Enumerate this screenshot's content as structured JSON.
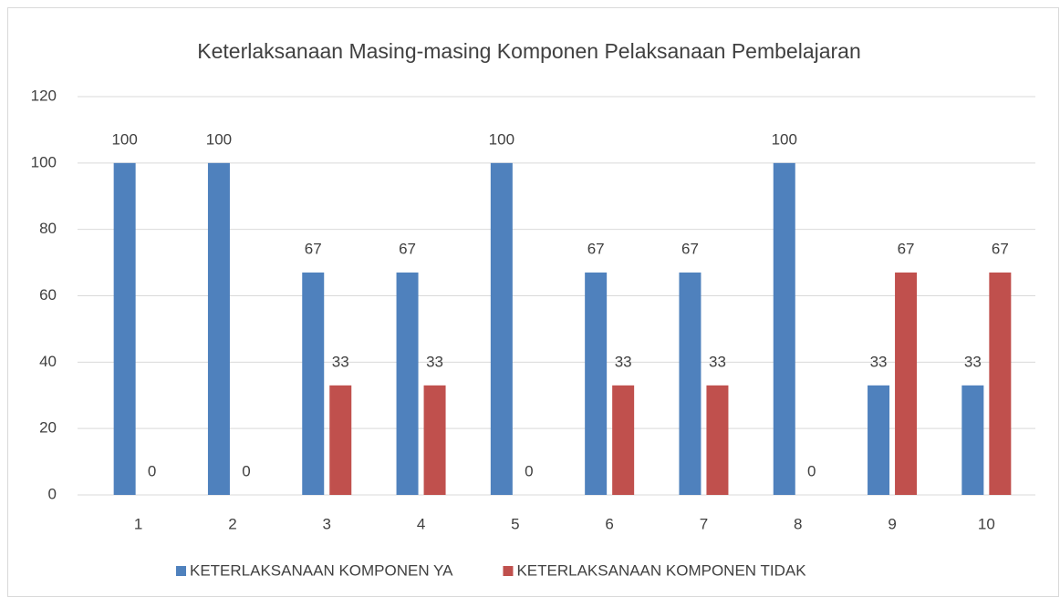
{
  "chart_data": {
    "type": "bar",
    "title": "Keterlaksanaan Masing-masing Komponen Pelaksanaan Pembelajaran",
    "categories": [
      "1",
      "2",
      "3",
      "4",
      "5",
      "6",
      "7",
      "8",
      "9",
      "10"
    ],
    "series": [
      {
        "name": "KETERLAKSANAAN KOMPONEN YA",
        "color": "#4f81bd",
        "values": [
          100,
          100,
          67,
          67,
          100,
          67,
          67,
          100,
          33,
          33
        ]
      },
      {
        "name": "KETERLAKSANAAN KOMPONEN TIDAK",
        "color": "#c0504d",
        "values": [
          0,
          0,
          33,
          33,
          0,
          33,
          33,
          0,
          67,
          67
        ]
      }
    ],
    "ylim": [
      0,
      120
    ],
    "yticks": [
      0,
      20,
      40,
      60,
      80,
      100,
      120
    ],
    "grid": true,
    "legend": "bottom"
  }
}
